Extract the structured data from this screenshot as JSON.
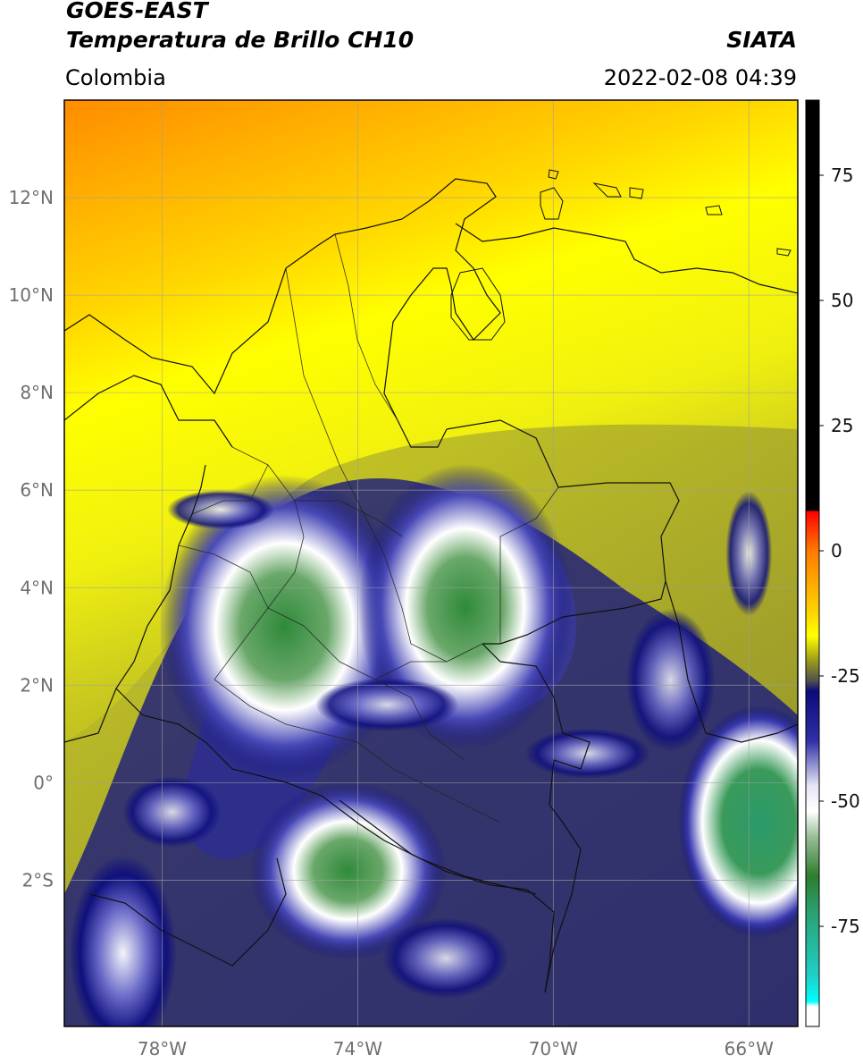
{
  "header": {
    "satellite": "GOES-EAST",
    "product": "Temperatura de Brillo CH10",
    "region": "Colombia",
    "brand": "SIATA",
    "timestamp": "2022-02-08 04:39"
  },
  "map": {
    "lat_labels": [
      {
        "lat": 12,
        "label": "12°N"
      },
      {
        "lat": 10,
        "label": "10°N"
      },
      {
        "lat": 8,
        "label": "8°N"
      },
      {
        "lat": 6,
        "label": "6°N"
      },
      {
        "lat": 4,
        "label": "4°N"
      },
      {
        "lat": 2,
        "label": "2°N"
      },
      {
        "lat": 0,
        "label": "0°"
      },
      {
        "lat": -2,
        "label": "2°S"
      }
    ],
    "lon_labels": [
      {
        "lon": -78,
        "label": "78°W"
      },
      {
        "lon": -74,
        "label": "74°W"
      },
      {
        "lon": -70,
        "label": "70°W"
      },
      {
        "lon": -66,
        "label": "66°W"
      }
    ],
    "extent": {
      "lon_min": -80,
      "lon_max": -65,
      "lat_min": -5,
      "lat_max": 14
    },
    "cold_clouds": [
      {
        "name": "cloud-cluster-central-andes",
        "lon": -75.5,
        "lat": 3.2,
        "intensity": "deep"
      },
      {
        "name": "cloud-cluster-eastern-plains",
        "lon": -71.8,
        "lat": 3.6,
        "intensity": "deep"
      },
      {
        "name": "cloud-cluster-amazon-south",
        "lon": -74.2,
        "lat": -1.8,
        "intensity": "deep"
      },
      {
        "name": "cloud-cluster-east-border",
        "lon": -65.8,
        "lat": -0.8,
        "intensity": "deep"
      },
      {
        "name": "cloud-cluster-southwest",
        "lon": -78.8,
        "lat": -3.5,
        "intensity": "moderate"
      }
    ]
  },
  "colorbar": {
    "ticks": [
      {
        "value": 75,
        "label": "75"
      },
      {
        "value": 50,
        "label": "50"
      },
      {
        "value": 25,
        "label": "25"
      },
      {
        "value": 0,
        "label": "0"
      },
      {
        "value": -25,
        "label": "-25"
      },
      {
        "value": -50,
        "label": "-50"
      },
      {
        "value": -75,
        "label": "-75"
      }
    ],
    "range": [
      -95,
      90
    ],
    "stops": [
      {
        "value": 90,
        "color": "#000000"
      },
      {
        "value": 8,
        "color": "#000000"
      },
      {
        "value": 7.9,
        "color": "#ff0000"
      },
      {
        "value": 0,
        "color": "#ff7a00"
      },
      {
        "value": -12,
        "color": "#ffd200"
      },
      {
        "value": -17,
        "color": "#ffff00"
      },
      {
        "value": -22,
        "color": "#9a9a1a"
      },
      {
        "value": -26,
        "color": "#505050"
      },
      {
        "value": -28,
        "color": "#0b0b7a"
      },
      {
        "value": -38,
        "color": "#3030a8"
      },
      {
        "value": -47,
        "color": "#e6e6f5"
      },
      {
        "value": -52,
        "color": "#ffffff"
      },
      {
        "value": -57,
        "color": "#9ac09a"
      },
      {
        "value": -65,
        "color": "#2e7d2e"
      },
      {
        "value": -72,
        "color": "#2aa070"
      },
      {
        "value": -85,
        "color": "#20d0c8"
      },
      {
        "value": -90,
        "color": "#00ffff"
      },
      {
        "value": -91,
        "color": "#ffffff"
      },
      {
        "value": -95,
        "color": "#ffffff"
      }
    ]
  }
}
